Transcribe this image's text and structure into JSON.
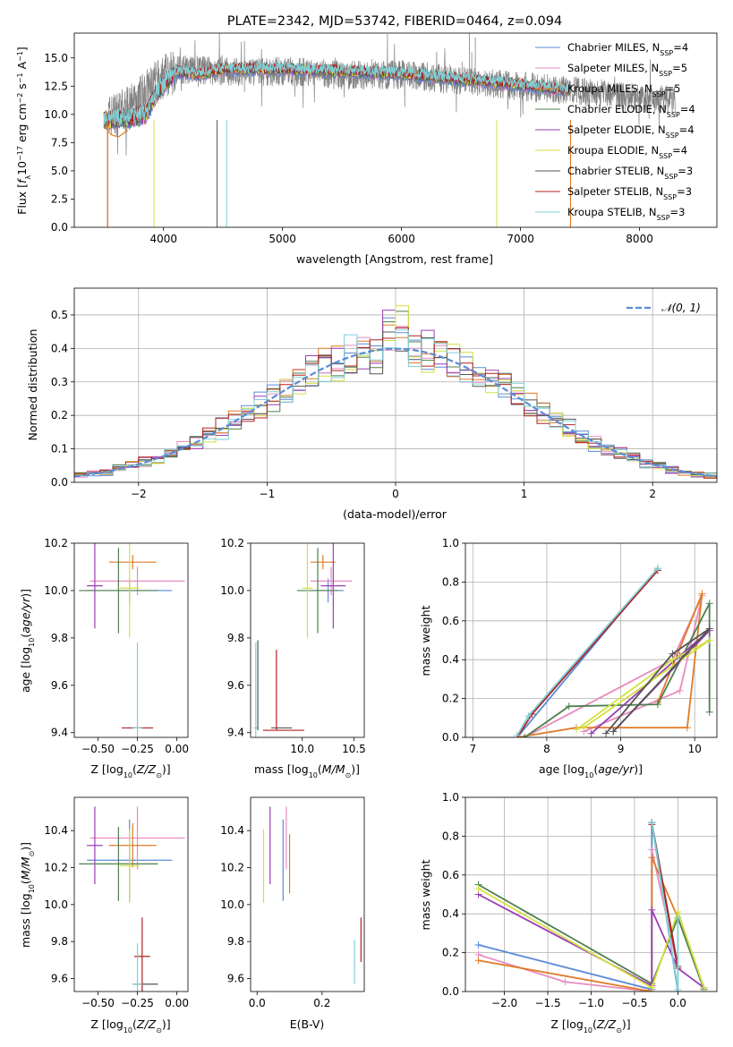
{
  "chart_data": [
    {
      "type": "line",
      "title": "PLATE=2342, MJD=53742, FIBERID=0464, z=0.094",
      "xlabel": "wavelength [Angstrom, rest frame]",
      "ylabel": "Flux [f_λ 10^-17 erg cm^-2 s^-1 A^-1]",
      "xlim": [
        3250,
        8650
      ],
      "ylim": [
        0,
        17.2
      ],
      "xticks": [
        4000,
        5000,
        6000,
        7000,
        8000
      ],
      "yticks": [
        0.0,
        2.5,
        5.0,
        7.5,
        10.0,
        12.5,
        15.0
      ],
      "legend_position": "top-right",
      "series": [
        {
          "name": "Chabrier MILES, N_SSP=4",
          "color": "#5b8bd6"
        },
        {
          "name": "Salpeter MILES, N_SSP=5",
          "color": "#e88bc0"
        },
        {
          "name": "Kroupa MILES, N_SSP=5",
          "color": "#e07b28"
        },
        {
          "name": "Chabrier ELODIE, N_SSP=4",
          "color": "#4f7f4f"
        },
        {
          "name": "Salpeter ELODIE, N_SSP=4",
          "color": "#9b3fb5"
        },
        {
          "name": "Kroupa ELODIE, N_SSP=4",
          "color": "#d4e040"
        },
        {
          "name": "Chabrier STELIB, N_SSP=3",
          "color": "#555555"
        },
        {
          "name": "Salpeter STELIB, N_SSP=3",
          "color": "#b22222"
        },
        {
          "name": "Kroupa STELIB, N_SSP=3",
          "color": "#7fd0d6"
        }
      ],
      "data_gray": {
        "color": "#808080",
        "x_range": [
          3530,
          8300
        ],
        "description_points": [
          [
            3530,
            9.8
          ],
          [
            3700,
            10.5
          ],
          [
            3900,
            12.5
          ],
          [
            4100,
            14.0
          ],
          [
            4500,
            13.8
          ],
          [
            5000,
            13.8
          ],
          [
            5500,
            13.5
          ],
          [
            6000,
            13.5
          ],
          [
            6500,
            13.0
          ],
          [
            7000,
            12.5
          ],
          [
            7500,
            12.0
          ],
          [
            8000,
            11.5
          ],
          [
            8300,
            11.3
          ]
        ]
      },
      "model_curve_points": [
        [
          3500,
          9.5
        ],
        [
          3700,
          9.6
        ],
        [
          3850,
          10.0
        ],
        [
          3950,
          12.0
        ],
        [
          4100,
          13.8
        ],
        [
          4300,
          13.5
        ],
        [
          4500,
          14.0
        ],
        [
          5000,
          14.0
        ],
        [
          5500,
          13.8
        ],
        [
          6000,
          13.6
        ],
        [
          6500,
          13.1
        ],
        [
          7000,
          12.6
        ],
        [
          7400,
          12.1
        ]
      ]
    },
    {
      "type": "step",
      "xlabel": "(data-model)/error",
      "ylabel": "Normed distribution",
      "xlim": [
        -2.5,
        2.5
      ],
      "ylim": [
        0,
        0.58
      ],
      "xticks": [
        -2,
        -1,
        0,
        1,
        2
      ],
      "yticks": [
        0.0,
        0.1,
        0.2,
        0.3,
        0.4,
        0.5
      ],
      "grid": true,
      "legend_position": "top-right",
      "legend": "𝒩(0, 1)",
      "gaussian": {
        "mean": 0,
        "sigma": 1,
        "color": "#5b8bd6",
        "style": "dashed"
      }
    },
    {
      "type": "errorbar",
      "xlabel": "Z [log10(Z/Z⊙)]",
      "ylabel": "age  [log10(age/yr)]",
      "xlim": [
        -0.65,
        0.07
      ],
      "ylim": [
        9.38,
        10.2
      ],
      "xticks": [
        -0.5,
        -0.25,
        0.0
      ],
      "xticklabels": [
        "−0.50",
        "−0.25",
        "0.00"
      ],
      "yticks": [
        9.4,
        9.6,
        9.8,
        10.0,
        10.2
      ],
      "points": [
        {
          "x": -0.3,
          "xerr": 0.27,
          "y": 10.0,
          "yerr": 0.05,
          "color": "#5b8bd6"
        },
        {
          "x": -0.25,
          "xerr": 0.3,
          "y": 10.04,
          "yerr": 0.06,
          "color": "#e88bc0"
        },
        {
          "x": -0.28,
          "xerr": 0.15,
          "y": 10.12,
          "yerr": 0.03,
          "color": "#e07b28"
        },
        {
          "x": -0.37,
          "xerr": 0.25,
          "y": 10.0,
          "yerr": 0.18,
          "color": "#4f7f4f"
        },
        {
          "x": -0.52,
          "xerr": 0.05,
          "y": 10.02,
          "yerr": 0.18,
          "color": "#9b3fb5"
        },
        {
          "x": -0.3,
          "xerr": 0.06,
          "y": 10.01,
          "yerr": 0.21,
          "color": "#d4e040"
        },
        {
          "x": -0.25,
          "xerr": 0.03,
          "y": 9.42,
          "yerr": 0.0,
          "color": "#555555"
        },
        {
          "x": -0.25,
          "xerr": 0.1,
          "y": 9.42,
          "yerr": 0.0,
          "color": "#b22222"
        },
        {
          "x": -0.25,
          "xerr": 0.03,
          "y": 9.42,
          "yerr": 0.36,
          "color": "#7fd0d6"
        }
      ]
    },
    {
      "type": "errorbar",
      "xlabel": "mass [log10(M/M⊙)]",
      "xlim": [
        9.5,
        10.6
      ],
      "ylim": [
        9.38,
        10.2
      ],
      "xticks": [
        10.0,
        10.5
      ],
      "xticklabels": [
        "10.0",
        "10.5"
      ],
      "yticks": [
        9.4,
        9.6,
        9.8,
        10.0,
        10.2
      ]
    },
    {
      "type": "line",
      "xlabel": "age  [log10(age/yr)]",
      "ylabel": "mass weight",
      "xlim": [
        6.9,
        10.3
      ],
      "ylim": [
        0,
        1.0
      ],
      "xticks": [
        7,
        8,
        9,
        10
      ],
      "yticks": [
        0.0,
        0.2,
        0.4,
        0.6,
        0.8,
        1.0
      ],
      "grid": true
    },
    {
      "type": "errorbar",
      "xlabel": "Z [log10(Z/Z⊙)]",
      "ylabel": "mass [log10(M/M⊙)]",
      "xlim": [
        -0.65,
        0.07
      ],
      "ylim": [
        9.53,
        10.58
      ],
      "xticks": [
        -0.5,
        -0.25,
        0.0
      ],
      "xticklabels": [
        "−0.50",
        "−0.25",
        "0.00"
      ],
      "yticks": [
        9.6,
        9.8,
        10.0,
        10.2,
        10.4
      ]
    },
    {
      "type": "errorbar",
      "xlabel": "E(B-V)",
      "xlim": [
        -0.02,
        0.33
      ],
      "ylim": [
        9.53,
        10.58
      ],
      "xticks": [
        0.0,
        0.2
      ],
      "xticklabels": [
        "0.0",
        "0.2"
      ],
      "yticks": [
        9.6,
        9.8,
        10.0,
        10.2,
        10.4
      ]
    },
    {
      "type": "line",
      "xlabel": "Z [log10(Z/Z⊙)]",
      "ylabel": "mass weight",
      "xlim": [
        -2.45,
        0.45
      ],
      "ylim": [
        0,
        1.0
      ],
      "xticks": [
        -2.0,
        -1.5,
        -1.0,
        -0.5,
        0.0
      ],
      "xticklabels": [
        "−2.0",
        "−1.5",
        "−1.0",
        "−0.5",
        "0.0"
      ],
      "yticks": [
        0.0,
        0.2,
        0.4,
        0.6,
        0.8,
        1.0
      ],
      "grid": true
    }
  ]
}
